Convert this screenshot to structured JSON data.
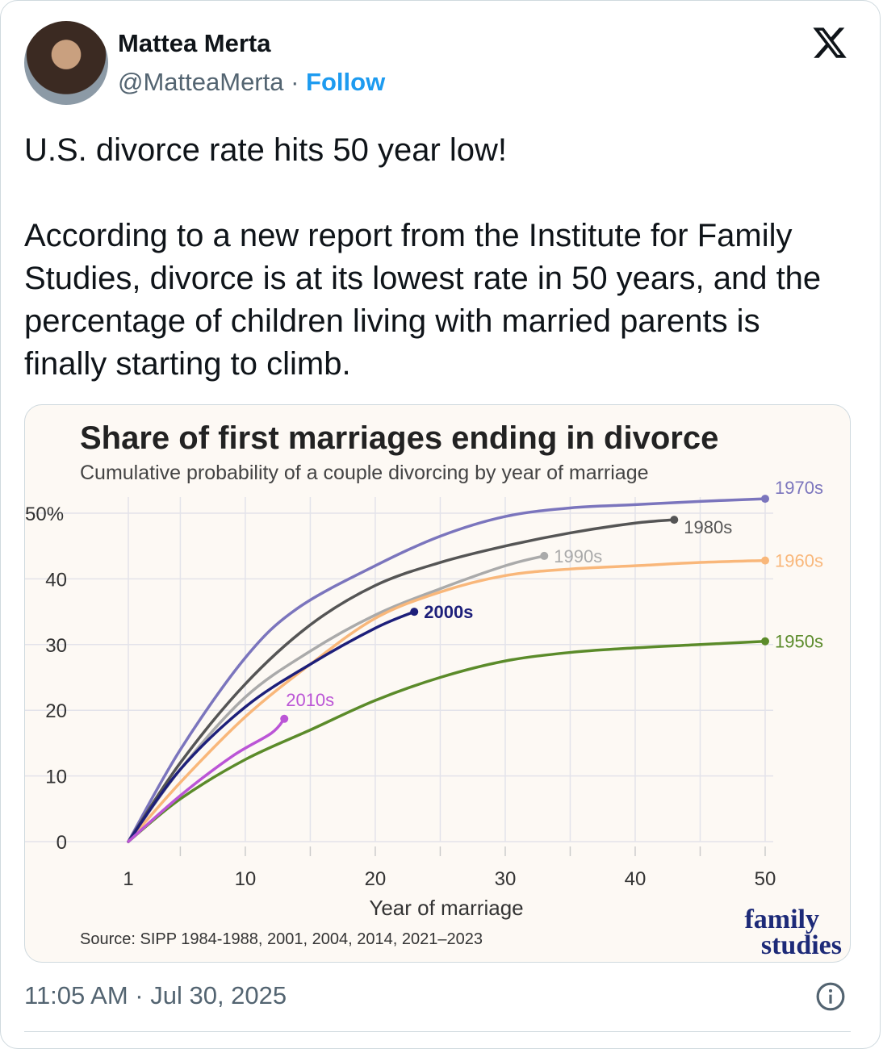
{
  "post": {
    "author_name": "Mattea Merta",
    "handle": "@MatteaMerta",
    "separator": " · ",
    "follow_label": "Follow",
    "text_line1": "U.S. divorce rate hits 50 year low!",
    "text_line2": "According to a new report from the Institute for Family Studies, divorce is at its lowest rate in 50 years, and the percentage of children living with married parents is finally starting to climb.",
    "timestamp": "11:05 AM · Jul 30, 2025",
    "icons": {
      "brand": "x-logo-icon",
      "info": "info-icon"
    }
  },
  "chart_data": {
    "type": "line",
    "title": "Share of first marriages ending in divorce",
    "subtitle": "Cumulative probability of a couple divorcing by year of marriage",
    "xlabel": "Year of marriage",
    "ylabel": "",
    "x_ticks": [
      1,
      10,
      20,
      30,
      40,
      50
    ],
    "y_ticks": [
      0,
      10,
      20,
      30,
      40,
      50
    ],
    "y_tick_labels": [
      "0",
      "10",
      "20",
      "30",
      "40",
      "50%"
    ],
    "xlim": [
      1,
      50
    ],
    "ylim": [
      0,
      50
    ],
    "grid": true,
    "source": "Source: SIPP 1984-1988, 2001, 2004, 2014, 2021–2023",
    "logo": "family studies",
    "series": [
      {
        "name": "1970s",
        "color": "#7b75bd",
        "x": [
          1,
          5,
          10,
          14,
          20,
          25,
          30,
          35,
          40,
          45,
          50
        ],
        "y": [
          0,
          14,
          28,
          35.5,
          42,
          46.5,
          49.5,
          50.8,
          51.3,
          51.8,
          52.2
        ]
      },
      {
        "name": "1980s",
        "color": "#555555",
        "x": [
          1,
          5,
          10,
          15,
          20,
          25,
          30,
          35,
          40,
          43
        ],
        "y": [
          0,
          12,
          24,
          33,
          39,
          42.5,
          45,
          47,
          48.5,
          49
        ]
      },
      {
        "name": "1990s",
        "color": "#aaaaaa",
        "x": [
          1,
          5,
          10,
          15,
          20,
          25,
          30,
          33
        ],
        "y": [
          0,
          11,
          22,
          29,
          34.5,
          38.5,
          42,
          43.5
        ]
      },
      {
        "name": "1960s",
        "color": "#f9b77a",
        "x": [
          1,
          5,
          10,
          15,
          20,
          25,
          30,
          35,
          40,
          45,
          50
        ],
        "y": [
          0,
          9,
          19,
          27,
          34,
          38,
          40.5,
          41.5,
          42,
          42.5,
          42.8
        ]
      },
      {
        "name": "2000s",
        "color": "#1d1f7a",
        "x": [
          1,
          5,
          10,
          15,
          20,
          23
        ],
        "y": [
          0,
          11,
          20.5,
          27,
          32.5,
          35
        ]
      },
      {
        "name": "1950s",
        "color": "#5b8b2a",
        "x": [
          1,
          5,
          10,
          15,
          20,
          25,
          30,
          35,
          40,
          45,
          50
        ],
        "y": [
          0,
          6.5,
          12.5,
          17,
          21.5,
          25,
          27.5,
          28.8,
          29.5,
          30,
          30.5
        ]
      },
      {
        "name": "2010s",
        "color": "#bb55d6",
        "x": [
          1,
          5,
          9,
          12,
          13
        ],
        "y": [
          0,
          7,
          13,
          16.5,
          18.7
        ]
      }
    ]
  }
}
